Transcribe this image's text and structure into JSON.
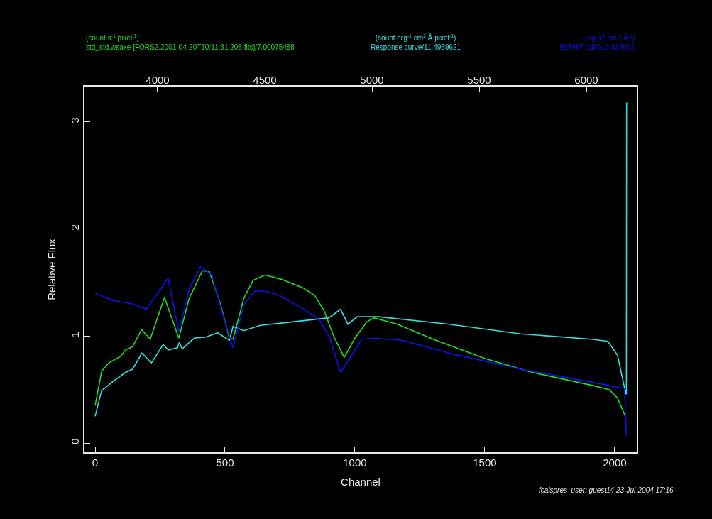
{
  "chart_data": {
    "type": "line",
    "xlabel": "Channel",
    "ylabel": "Relative Flux",
    "xlim": [
      -41,
      2085
    ],
    "ylim": [
      -0.086,
      3.33
    ],
    "xticks": [
      0,
      500,
      1000,
      1500,
      2000
    ],
    "yticks": [
      0,
      1,
      2,
      3
    ],
    "x2lim": [
      3659,
      6235
    ],
    "x2ticks": [
      4000,
      4500,
      5000,
      5500,
      6000
    ],
    "marker": "none",
    "line_style": "solid",
    "series": [
      {
        "name": "(count s$^{-1}$ pixel$^{-1}$)\nstd_std.wsaxe [FORS2.2001-04-20T10:11:31.208.fits]/7.00075488",
        "color": "#22dd22",
        "x": [
          0,
          25,
          53,
          98,
          117,
          144,
          179,
          212,
          267,
          322,
          362,
          413,
          440,
          481,
          517,
          531,
          572,
          608,
          654,
          717,
          800,
          845,
          881,
          918,
          959,
          1000,
          1045,
          1073,
          1164,
          1301,
          1501,
          1683,
          1911,
          1979,
          2011,
          2043
        ],
        "values": [
          0.35,
          0.67,
          0.75,
          0.81,
          0.87,
          0.9,
          1.06,
          0.97,
          1.36,
          0.98,
          1.35,
          1.61,
          1.6,
          1.31,
          0.98,
          0.97,
          1.35,
          1.52,
          1.57,
          1.53,
          1.45,
          1.38,
          1.24,
          1.0,
          0.8,
          0.98,
          1.13,
          1.17,
          1.11,
          0.97,
          0.79,
          0.66,
          0.54,
          0.5,
          0.42,
          0.24
        ]
      },
      {
        "name": "(count erg$^{-1}$ cm$^{2}$ Å pixel$^{-1}$)\nResponse curve/11.4959621",
        "color": "#33e0e0",
        "x": [
          0,
          25,
          71,
          117,
          144,
          180,
          217,
          262,
          281,
          317,
          324,
          335,
          381,
          426,
          472,
          517,
          531,
          572,
          636,
          754,
          900,
          945,
          973,
          1009,
          1091,
          1364,
          1638,
          1911,
          1974,
          2011,
          2043,
          2045,
          2046
        ],
        "values": [
          0.25,
          0.49,
          0.58,
          0.66,
          0.69,
          0.84,
          0.75,
          0.92,
          0.87,
          0.89,
          0.94,
          0.88,
          0.98,
          0.99,
          1.03,
          0.96,
          1.09,
          1.05,
          1.1,
          1.13,
          1.17,
          1.25,
          1.11,
          1.18,
          1.18,
          1.11,
          1.02,
          0.97,
          0.95,
          0.82,
          0.46,
          0.46,
          3.18
        ]
      },
      {
        "name": "(erg s$^{-1}$ cm$^{-2}$ Å$^{-1}$)\nfltt7987.dat/615.934082",
        "color": "#1010ee",
        "x": [
          0,
          71,
          144,
          197,
          281,
          322,
          363,
          406,
          449,
          495,
          531,
          572,
          613,
          654,
          709,
          818,
          863,
          904,
          945,
          1027,
          1073,
          1182,
          1364,
          1638,
          1911,
          2038,
          2045
        ],
        "values": [
          1.4,
          1.33,
          1.3,
          1.25,
          1.54,
          1.04,
          1.44,
          1.65,
          1.57,
          1.17,
          0.89,
          1.29,
          1.42,
          1.42,
          1.38,
          1.23,
          1.15,
          0.98,
          0.66,
          0.97,
          0.98,
          0.96,
          0.84,
          0.69,
          0.57,
          0.51,
          0.07
        ]
      }
    ],
    "annotations": [
      "fcalspres  user: guest14 23-Jul-2004 17:16"
    ]
  }
}
